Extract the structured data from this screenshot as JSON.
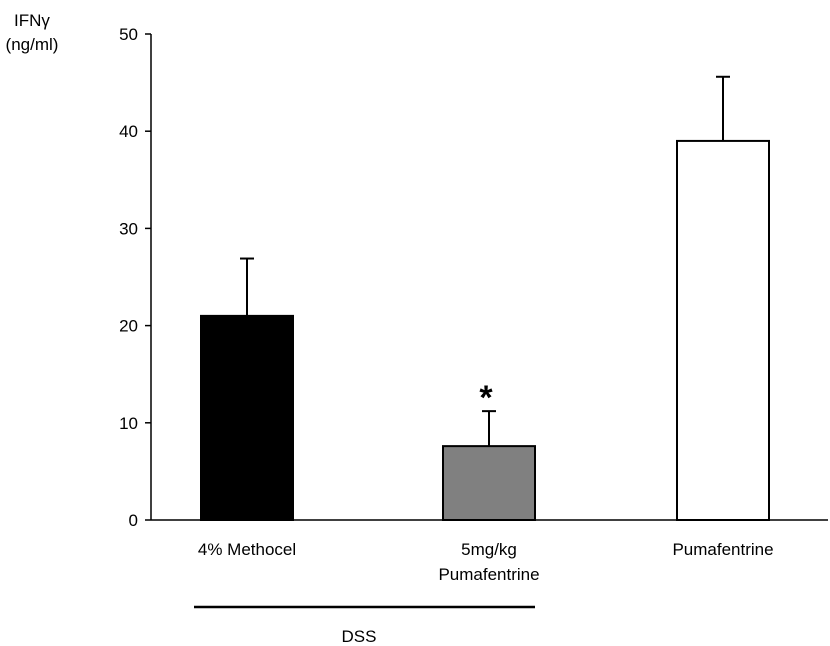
{
  "chart_data": {
    "type": "bar",
    "ylabel": [
      "IFNγ",
      "(ng/ml)"
    ],
    "ylim": [
      0,
      50
    ],
    "yticks": [
      "0",
      "10",
      "20",
      "30",
      "40",
      "50"
    ],
    "categories": [
      {
        "label": [
          "4% Methocel"
        ],
        "value": 21,
        "error": 5.9,
        "fill": "#000000",
        "annotation": ""
      },
      {
        "label": [
          "5mg/kg",
          "Pumafentrine"
        ],
        "value": 7.6,
        "error": 3.6,
        "fill": "#808080",
        "annotation": "*"
      },
      {
        "label": [
          "Pumafentrine"
        ],
        "value": 39,
        "error": 6.6,
        "fill": "#ffffff",
        "annotation": ""
      }
    ],
    "group_label": "DSS",
    "group_span": [
      "4% Methocel",
      "5mg/kg Pumafentrine"
    ],
    "grid": false,
    "legend": "none"
  }
}
